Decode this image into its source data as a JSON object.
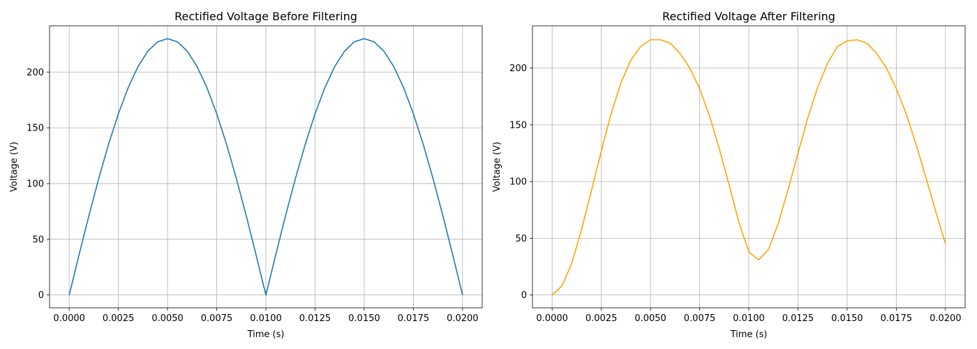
{
  "chart_data": [
    {
      "type": "line",
      "title": "Rectified Voltage Before Filtering",
      "xlabel": "Time (s)",
      "ylabel": "Voltage (V)",
      "xlim": [
        -0.001,
        0.021
      ],
      "ylim": [
        -11.5,
        241.5
      ],
      "xticks": [
        0.0,
        0.0025,
        0.005,
        0.0075,
        0.01,
        0.0125,
        0.015,
        0.0175,
        0.02
      ],
      "xtick_labels": [
        "0.0000",
        "0.0025",
        "0.0050",
        "0.0075",
        "0.0100",
        "0.0125",
        "0.0150",
        "0.0175",
        "0.0200"
      ],
      "yticks": [
        0,
        50,
        100,
        150,
        200
      ],
      "ytick_labels": [
        "0",
        "50",
        "100",
        "150",
        "200"
      ],
      "grid": true,
      "series": [
        {
          "color": "#1f77b4",
          "x": [
            0.0,
            0.0005,
            0.001,
            0.0015,
            0.002,
            0.0025,
            0.003,
            0.0035,
            0.004,
            0.0045,
            0.005,
            0.0055,
            0.006,
            0.0065,
            0.007,
            0.0075,
            0.008,
            0.0085,
            0.009,
            0.0095,
            0.01,
            0.0105,
            0.011,
            0.0115,
            0.012,
            0.0125,
            0.013,
            0.0135,
            0.014,
            0.0145,
            0.015,
            0.0155,
            0.016,
            0.0165,
            0.017,
            0.0175,
            0.018,
            0.0185,
            0.019,
            0.0195,
            0.02
          ],
          "y": [
            0,
            36.0,
            71.1,
            104.4,
            135.2,
            162.6,
            186.1,
            205.0,
            218.8,
            227.2,
            230.0,
            227.2,
            218.8,
            205.0,
            186.1,
            162.6,
            135.2,
            104.4,
            71.1,
            36.0,
            0,
            36.0,
            71.1,
            104.4,
            135.2,
            162.6,
            186.1,
            205.0,
            218.8,
            227.2,
            230.0,
            227.2,
            218.8,
            205.0,
            186.1,
            162.6,
            135.2,
            104.4,
            71.1,
            36.0,
            0
          ]
        }
      ]
    },
    {
      "type": "line",
      "title": "Rectified Voltage After Filtering",
      "xlabel": "Time (s)",
      "ylabel": "Voltage (V)",
      "xlim": [
        -0.001,
        0.021
      ],
      "ylim": [
        -11.3,
        237.3
      ],
      "xticks": [
        0.0,
        0.0025,
        0.005,
        0.0075,
        0.01,
        0.0125,
        0.015,
        0.0175,
        0.02
      ],
      "xtick_labels": [
        "0.0000",
        "0.0025",
        "0.0050",
        "0.0075",
        "0.0100",
        "0.0125",
        "0.0150",
        "0.0175",
        "0.0200"
      ],
      "yticks": [
        0,
        50,
        100,
        150,
        200
      ],
      "ytick_labels": [
        "0",
        "50",
        "100",
        "150",
        "200"
      ],
      "grid": true,
      "series": [
        {
          "color": "#ffa500",
          "x": [
            0.0,
            0.0005,
            0.001,
            0.0015,
            0.002,
            0.0025,
            0.003,
            0.0035,
            0.004,
            0.0045,
            0.005,
            0.0055,
            0.006,
            0.0065,
            0.007,
            0.0075,
            0.008,
            0.0085,
            0.009,
            0.0095,
            0.01,
            0.0105,
            0.011,
            0.0115,
            0.012,
            0.0125,
            0.013,
            0.0135,
            0.014,
            0.0145,
            0.015,
            0.0155,
            0.016,
            0.0165,
            0.017,
            0.0175,
            0.018,
            0.0185,
            0.019,
            0.0195,
            0.02
          ],
          "y": [
            0,
            8,
            28,
            58,
            92,
            127,
            160,
            187,
            207,
            219,
            225,
            225,
            222,
            213,
            200,
            182,
            158,
            129,
            97,
            64,
            38,
            31,
            40,
            63,
            93,
            125,
            156,
            183,
            204,
            219,
            224,
            225,
            222,
            213,
            200,
            182,
            160,
            133,
            104,
            74,
            45
          ]
        }
      ]
    }
  ]
}
